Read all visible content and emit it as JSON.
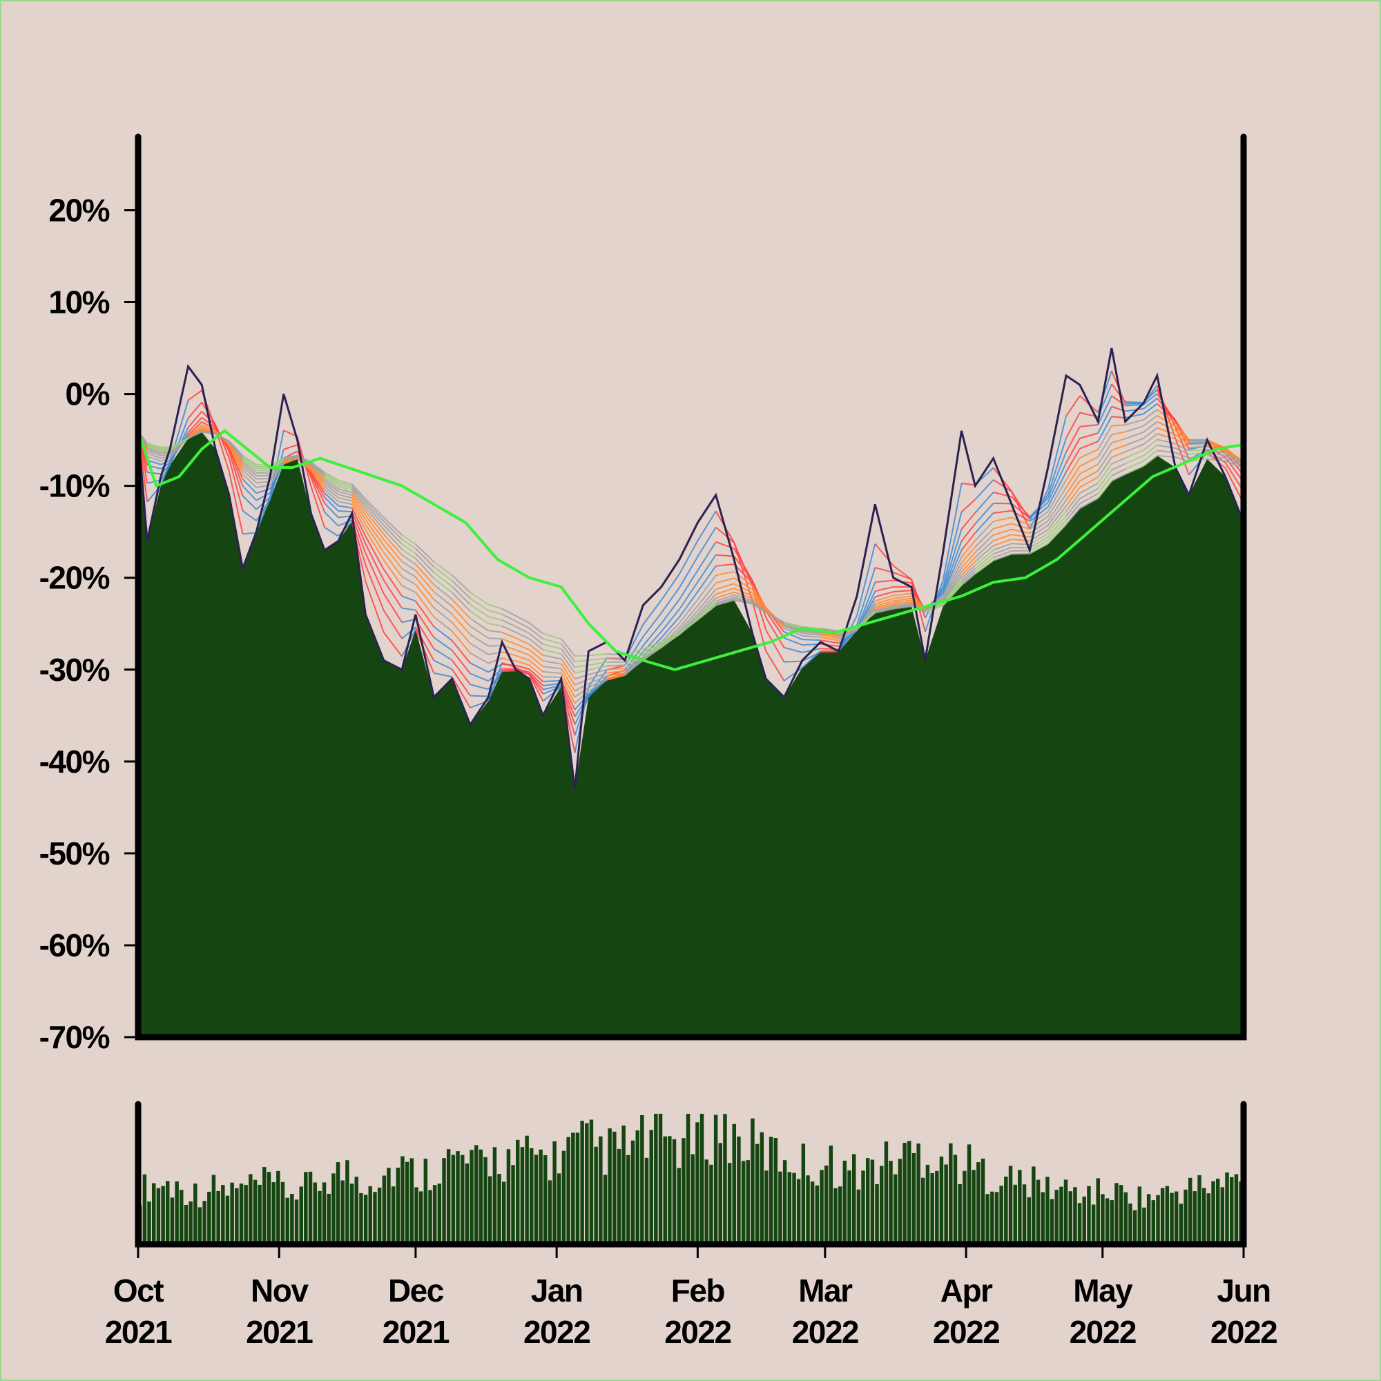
{
  "colors": {
    "background": "#e3d3cd",
    "fill": "#154612",
    "moving_average": "#3df03b",
    "price_line": "#2a2250",
    "ribbon_up": [
      "#3b8bd6",
      "#a0a0a0",
      "#9cc97f"
    ],
    "ribbon_down": [
      "#ff4040",
      "#ff8a30",
      "#a0a0a0"
    ],
    "axis": "#000000"
  },
  "chart_data": [
    {
      "type": "area",
      "y_ticks": [
        "20%",
        "10%",
        "0%",
        "-10%",
        "-20%",
        "-30%",
        "-40%",
        "-50%",
        "-60%",
        "-70%"
      ],
      "y_tick_values": [
        20,
        10,
        0,
        -10,
        -20,
        -30,
        -40,
        -50,
        -60,
        -70
      ],
      "ylim": [
        -70,
        28
      ],
      "x_range": [
        "2021-10-01",
        "2022-06-01"
      ],
      "series": [
        {
          "role": "drawdown_percent",
          "x": [
            "2021-10-01",
            "2021-10-03",
            "2021-10-06",
            "2021-10-08",
            "2021-10-12",
            "2021-10-15",
            "2021-10-18",
            "2021-10-21",
            "2021-10-24",
            "2021-10-27",
            "2021-10-30",
            "2021-11-02",
            "2021-11-05",
            "2021-11-08",
            "2021-11-11",
            "2021-11-14",
            "2021-11-17",
            "2021-11-20",
            "2021-11-24",
            "2021-11-28",
            "2021-12-01",
            "2021-12-05",
            "2021-12-09",
            "2021-12-13",
            "2021-12-17",
            "2021-12-20",
            "2021-12-23",
            "2021-12-26",
            "2021-12-29",
            "2022-01-02",
            "2022-01-05",
            "2022-01-08",
            "2022-01-12",
            "2022-01-16",
            "2022-01-20",
            "2022-01-24",
            "2022-01-28",
            "2022-02-01",
            "2022-02-05",
            "2022-02-09",
            "2022-02-13",
            "2022-02-16",
            "2022-02-20",
            "2022-02-24",
            "2022-02-28",
            "2022-03-04",
            "2022-03-08",
            "2022-03-12",
            "2022-03-16",
            "2022-03-20",
            "2022-03-23",
            "2022-03-27",
            "2022-03-31",
            "2022-04-03",
            "2022-04-07",
            "2022-04-11",
            "2022-04-15",
            "2022-04-19",
            "2022-04-23",
            "2022-04-26",
            "2022-04-30",
            "2022-05-03",
            "2022-05-06",
            "2022-05-10",
            "2022-05-13",
            "2022-05-17",
            "2022-05-20",
            "2022-05-24",
            "2022-05-28",
            "2022-06-01"
          ],
          "y": [
            -4,
            -16,
            -9,
            -6,
            3,
            1,
            -6,
            -11,
            -19,
            -15,
            -9,
            0,
            -5,
            -13,
            -17,
            -16,
            -13,
            -24,
            -29,
            -30,
            -24,
            -33,
            -31,
            -36,
            -33,
            -27,
            -30,
            -31,
            -35,
            -31,
            -43,
            -28,
            -27,
            -29,
            -23,
            -21,
            -18,
            -14,
            -11,
            -18,
            -26,
            -31,
            -33,
            -29,
            -27,
            -28,
            -22,
            -12,
            -20,
            -21,
            -29,
            -17,
            -4,
            -10,
            -7,
            -12,
            -17,
            -8,
            2,
            1,
            -3,
            5,
            -3,
            -1,
            2,
            -8,
            -11,
            -5,
            -9,
            -14
          ]
        },
        {
          "role": "moving_average",
          "x": [
            "2021-10-01",
            "2021-10-05",
            "2021-10-10",
            "2021-10-15",
            "2021-10-20",
            "2021-10-25",
            "2021-10-30",
            "2021-11-04",
            "2021-11-10",
            "2021-11-16",
            "2021-11-22",
            "2021-11-28",
            "2021-12-05",
            "2021-12-12",
            "2021-12-19",
            "2021-12-26",
            "2022-01-02",
            "2022-01-08",
            "2022-01-14",
            "2022-01-20",
            "2022-01-27",
            "2022-02-03",
            "2022-02-10",
            "2022-02-17",
            "2022-02-24",
            "2022-03-03",
            "2022-03-10",
            "2022-03-17",
            "2022-03-24",
            "2022-03-31",
            "2022-04-07",
            "2022-04-14",
            "2022-04-21",
            "2022-04-28",
            "2022-05-05",
            "2022-05-12",
            "2022-05-19",
            "2022-05-26",
            "2022-06-01"
          ],
          "y": [
            -4,
            -10,
            -9,
            -6,
            -4,
            -6,
            -8,
            -8,
            -7,
            -8,
            -9,
            -10,
            -12,
            -14,
            -18,
            -20,
            -21,
            -25,
            -28,
            -29,
            -30,
            -29,
            -28,
            -27,
            -25.5,
            -26,
            -25,
            -24,
            -23,
            -22,
            -20.5,
            -20,
            -18,
            -15,
            -12,
            -9,
            -7.5,
            -6,
            -5.5
          ]
        }
      ]
    },
    {
      "type": "bar",
      "role": "volume",
      "x_ticks": [
        {
          "month": "Oct",
          "year": "2021"
        },
        {
          "month": "Nov",
          "year": "2021"
        },
        {
          "month": "Dec",
          "year": "2021"
        },
        {
          "month": "Jan",
          "year": "2022"
        },
        {
          "month": "Feb",
          "year": "2022"
        },
        {
          "month": "Mar",
          "year": "2022"
        },
        {
          "month": "Apr",
          "year": "2022"
        },
        {
          "month": "May",
          "year": "2022"
        },
        {
          "month": "Jun",
          "year": "2022"
        }
      ],
      "values": [
        0.45,
        0.5,
        0.47,
        0.42,
        0.46,
        0.44,
        0.48,
        0.5,
        0.43,
        0.47,
        0.55,
        0.6,
        0.52,
        0.58,
        0.63,
        0.57,
        0.66,
        0.7,
        0.64,
        0.72,
        0.68,
        0.74,
        0.7,
        0.78,
        0.83,
        0.76,
        0.8,
        0.85,
        0.9,
        0.82,
        0.88,
        0.95,
        0.86,
        0.8,
        0.74,
        0.7,
        0.64,
        0.66,
        0.6,
        0.62,
        0.68,
        0.74,
        0.76,
        0.72,
        0.68,
        0.6,
        0.56,
        0.52,
        0.5,
        0.46,
        0.44,
        0.42,
        0.44,
        0.4,
        0.38,
        0.42,
        0.45,
        0.48,
        0.5,
        0.55
      ]
    }
  ]
}
